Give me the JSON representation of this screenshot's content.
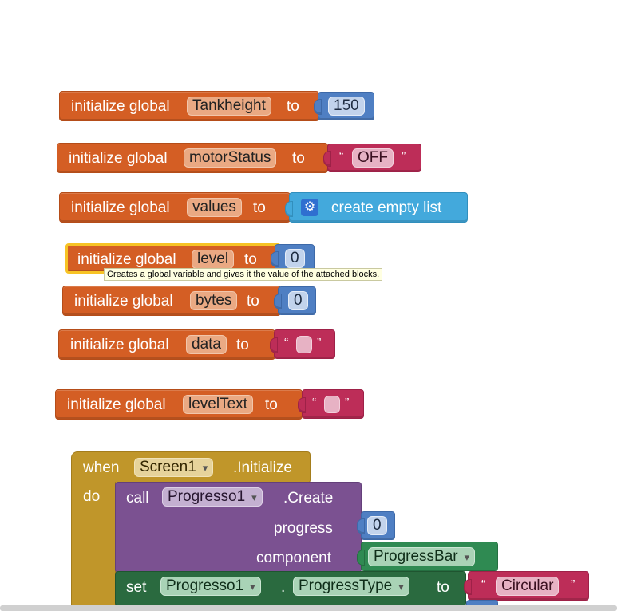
{
  "globals": [
    {
      "keyword": "initialize global",
      "name": "Tankheight",
      "to": "to",
      "value": "150",
      "value_type": "number"
    },
    {
      "keyword": "initialize global",
      "name": "motorStatus",
      "to": "to",
      "value": "OFF",
      "value_type": "text"
    },
    {
      "keyword": "initialize global",
      "name": "values",
      "to": "to",
      "value": "create empty list",
      "value_type": "list"
    },
    {
      "keyword": "initialize global",
      "name": "level",
      "to": "to",
      "value": "0",
      "value_type": "number"
    },
    {
      "keyword": "initialize global",
      "name": "bytes",
      "to": "to",
      "value": "0",
      "value_type": "number"
    },
    {
      "keyword": "initialize global",
      "name": "data",
      "to": "to",
      "value": "",
      "value_type": "text"
    },
    {
      "keyword": "initialize global",
      "name": "levelText",
      "to": "to",
      "value": "",
      "value_type": "text"
    }
  ],
  "quote_open": "“",
  "quote_close": "”",
  "tooltip": "Creates a global variable and gives it the value of the attached blocks.",
  "event": {
    "when": "when",
    "component": "Screen1",
    "event_name": ".Initialize",
    "do": "do",
    "call": {
      "keyword": "call",
      "component": "Progresso1",
      "method": ".Create",
      "param1_label": "progress",
      "param1_value": "0",
      "param2_label": "component",
      "param2_value": "ProgressBar"
    },
    "set": {
      "keyword": "set",
      "component": "Progresso1",
      "dot": ".",
      "property": "ProgressType",
      "to": "to",
      "value": "Circular"
    }
  },
  "icons": {
    "mutator": "gear-icon",
    "dropdown": "chevron-down-icon"
  },
  "colors": {
    "variable_block": "#d45e24",
    "number_block": "#4f7fc3",
    "text_block": "#bd2d58",
    "list_block": "#43a9dc",
    "event_block": "#c0962a",
    "procedure_block": "#7b5191",
    "component_block": "#2f8a52",
    "setter_block": "#2a6a3f",
    "selected_outline": "#f7c325"
  }
}
